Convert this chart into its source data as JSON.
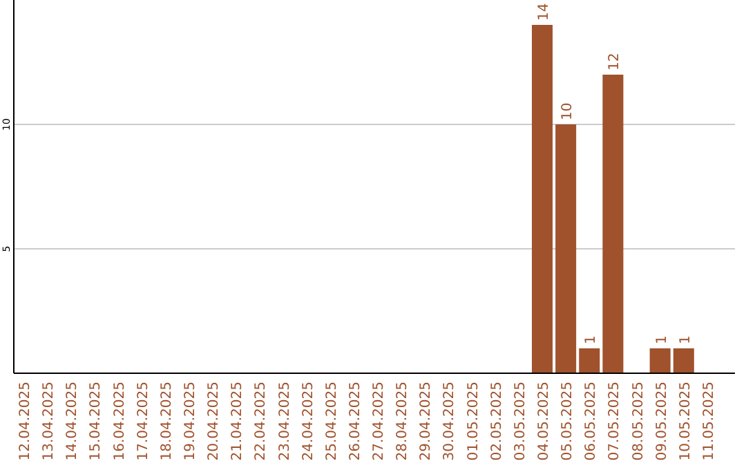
{
  "chart_data": {
    "type": "bar",
    "categories": [
      "12.04.2025",
      "13.04.2025",
      "14.04.2025",
      "15.04.2025",
      "16.04.2025",
      "17.04.2025",
      "18.04.2025",
      "19.04.2025",
      "20.04.2025",
      "21.04.2025",
      "22.04.2025",
      "23.04.2025",
      "24.04.2025",
      "25.04.2025",
      "26.04.2025",
      "27.04.2025",
      "28.04.2025",
      "29.04.2025",
      "30.04.2025",
      "01.05.2025",
      "02.05.2025",
      "03.05.2025",
      "04.05.2025",
      "05.05.2025",
      "06.05.2025",
      "07.05.2025",
      "08.05.2025",
      "09.05.2025",
      "10.05.2025",
      "11.05.2025"
    ],
    "values": [
      0,
      0,
      0,
      0,
      0,
      0,
      0,
      0,
      0,
      0,
      0,
      0,
      0,
      0,
      0,
      0,
      0,
      0,
      0,
      0,
      0,
      0,
      14,
      10,
      1,
      12,
      0,
      1,
      1,
      0
    ],
    "value_labels": [
      null,
      null,
      null,
      null,
      null,
      null,
      null,
      null,
      null,
      null,
      null,
      null,
      null,
      null,
      null,
      null,
      null,
      null,
      null,
      null,
      null,
      null,
      "14",
      "10",
      "1",
      "12",
      null,
      "1",
      "1",
      null
    ],
    "color": "#a0522d",
    "ylim": [
      0,
      15
    ],
    "yticks": [
      5,
      10
    ],
    "grid": "y"
  }
}
